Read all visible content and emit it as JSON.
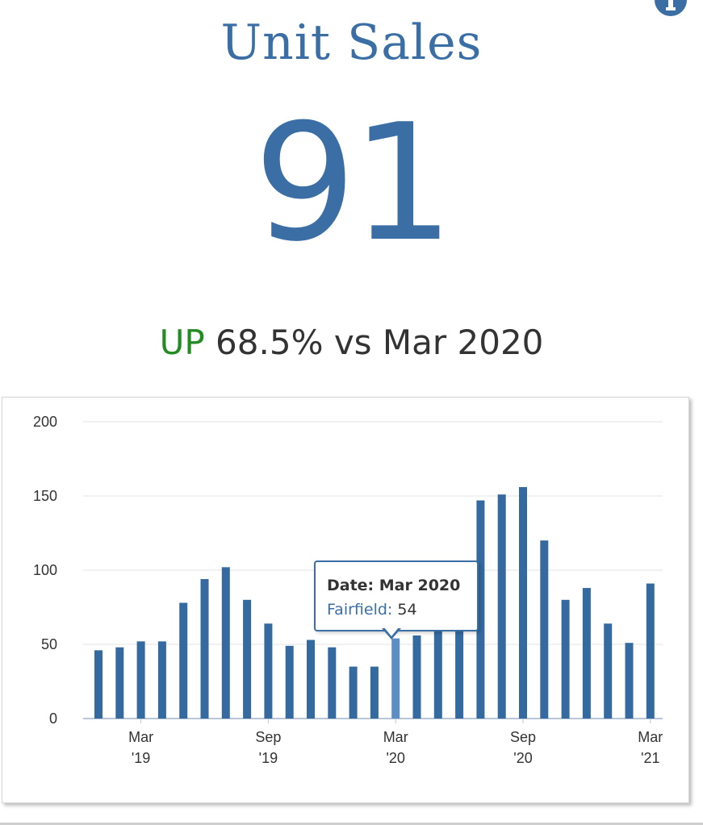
{
  "header": {
    "title": "Unit Sales",
    "value": "91",
    "change_direction": "UP",
    "change_text": "68.5% vs Mar 2020"
  },
  "colors": {
    "accent": "#3a6ea5",
    "bar": "#346aa0",
    "bar_highlight": "#5a8fc6",
    "up": "#228b22"
  },
  "icons": {
    "info": "info-icon"
  },
  "tooltip": {
    "date_label": "Date: Mar 2020",
    "series_label": "Fairfield:",
    "value": "54"
  },
  "chart_data": {
    "type": "bar",
    "series": [
      {
        "name": "Fairfield",
        "values": [
          46,
          48,
          52,
          52,
          78,
          94,
          102,
          80,
          64,
          49,
          53,
          48,
          35,
          35,
          54,
          56,
          60,
          62,
          147,
          151,
          156,
          120,
          80,
          88,
          64,
          51,
          91
        ]
      }
    ],
    "x_ticks": [
      {
        "index": 2,
        "line1": "Mar",
        "line2": "'19"
      },
      {
        "index": 8,
        "line1": "Sep",
        "line2": "'19"
      },
      {
        "index": 14,
        "line1": "Mar",
        "line2": "'20"
      },
      {
        "index": 20,
        "line1": "Sep",
        "line2": "'20"
      },
      {
        "index": 26,
        "line1": "Mar",
        "line2": "'21"
      }
    ],
    "y_ticks": [
      0,
      50,
      100,
      150,
      200
    ],
    "ylim": [
      0,
      200
    ],
    "grid": true,
    "highlight_index": 14
  }
}
